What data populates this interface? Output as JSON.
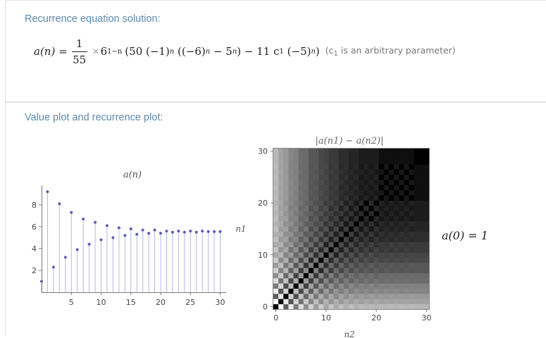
{
  "pods": [
    {
      "title": "Recurrence equation solution:",
      "formula": {
        "lhs": "a(n) =",
        "frac_num": "1",
        "frac_den": "55",
        "times": "×",
        "base": "6",
        "base_exp": "1−n",
        "body_a": "(50 (−1)",
        "exp_n1": "n",
        "body_b": " ((−6)",
        "exp_n2": "n",
        "body_c": " − 5",
        "exp_n3": "n",
        "body_d": ") − 11 c",
        "sub1": "1",
        "body_e": " (−5)",
        "exp_n4": "n",
        "body_f": ")",
        "note_open": "(c",
        "note_sub": "1",
        "note_rest": " is an arbitrary parameter)"
      }
    },
    {
      "title": "Value plot and recurrence plot:",
      "side_label": "a(0) = 1"
    }
  ],
  "chart_data": [
    {
      "type": "scatter",
      "title": "a(n)",
      "xlabel": "",
      "ylabel": "",
      "xlim": [
        0,
        31
      ],
      "ylim": [
        0,
        9.8
      ],
      "x_ticks": [
        5,
        10,
        15,
        20,
        25,
        30
      ],
      "y_ticks": [
        2,
        4,
        6,
        8
      ],
      "grid": false,
      "series": [
        {
          "color": "#5c5cbd",
          "x": [
            0,
            1,
            2,
            3,
            4,
            5,
            6,
            7,
            8,
            9,
            10,
            11,
            12,
            13,
            14,
            15,
            16,
            17,
            18,
            19,
            20,
            21,
            22,
            23,
            24,
            25,
            26,
            27,
            28,
            29,
            30
          ],
          "values": [
            1.0,
            9.2,
            2.3,
            8.1,
            3.2,
            7.3,
            3.9,
            6.7,
            4.4,
            6.4,
            4.8,
            6.1,
            5.0,
            5.9,
            5.2,
            5.8,
            5.3,
            5.7,
            5.4,
            5.7,
            5.4,
            5.6,
            5.5,
            5.6,
            5.5,
            5.6,
            5.5,
            5.6,
            5.55,
            5.55,
            5.55
          ]
        }
      ]
    },
    {
      "type": "heatmap",
      "title": "|a(n1) − a(n2)|",
      "xlabel": "n2",
      "ylabel": "n1",
      "xlim": [
        0,
        31
      ],
      "ylim": [
        0,
        31
      ],
      "x_ticks": [
        0,
        10,
        20,
        30
      ],
      "y_ticks": [
        0,
        10,
        20,
        30
      ],
      "colors": {
        "low": "#000000",
        "high": "#ffffff"
      }
    }
  ]
}
